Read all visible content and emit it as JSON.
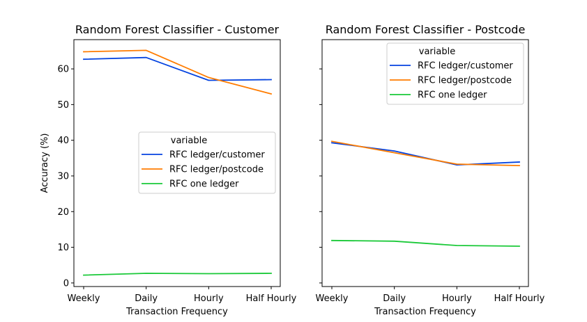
{
  "chart_data": [
    {
      "type": "line",
      "title": "Random Forest Classifier - Customer",
      "xlabel": "Transaction Frequency",
      "ylabel": "Accuracy (%)",
      "categories": [
        "Weekly",
        "Daily",
        "Hourly",
        "Half Hourly"
      ],
      "ylim": [
        -1,
        68.2
      ],
      "yticks": [
        "0",
        "10",
        "20",
        "30",
        "40",
        "50",
        "60"
      ],
      "legend": {
        "title": "variable",
        "placement": "center-right"
      },
      "series": [
        {
          "name": "RFC ledger/customer",
          "color": "#0443e0",
          "values": [
            62.7,
            63.2,
            56.8,
            57.0
          ]
        },
        {
          "name": "RFC ledger/postcode",
          "color": "#ff7c00",
          "values": [
            64.8,
            65.2,
            57.6,
            53.0
          ]
        },
        {
          "name": "RFC one ledger",
          "color": "#1ac938",
          "values": [
            2.2,
            2.7,
            2.6,
            2.7
          ]
        }
      ]
    },
    {
      "type": "line",
      "title": "Random Forest Classifier - Postcode",
      "xlabel": "Transaction Frequency",
      "ylabel": "",
      "categories": [
        "Weekly",
        "Daily",
        "Hourly",
        "Half Hourly"
      ],
      "ylim": [
        -1,
        68.2
      ],
      "yticks": [],
      "sharey": true,
      "legend": {
        "title": "variable",
        "placement": "top-right"
      },
      "series": [
        {
          "name": "RFC ledger/customer",
          "color": "#0443e0",
          "values": [
            39.3,
            37.0,
            33.1,
            33.9
          ]
        },
        {
          "name": "RFC ledger/postcode",
          "color": "#ff7c00",
          "values": [
            39.7,
            36.5,
            33.3,
            32.9
          ]
        },
        {
          "name": "RFC one ledger",
          "color": "#1ac938",
          "values": [
            11.9,
            11.7,
            10.5,
            10.3
          ]
        }
      ]
    }
  ]
}
